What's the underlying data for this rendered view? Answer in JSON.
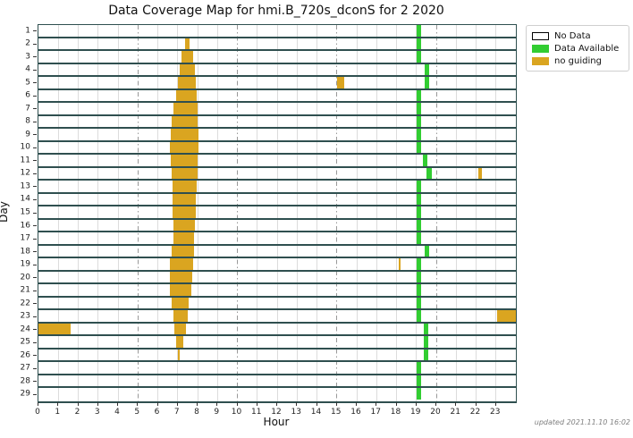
{
  "chart_data": {
    "type": "heatmap",
    "title": "Data Coverage Map for hmi.B_720s_dconS for 2 2020",
    "xlabel": "Hour",
    "ylabel": "Day",
    "xlim": [
      0,
      24
    ],
    "days": 29,
    "x_tick_labels": [
      "0",
      "1",
      "2",
      "3",
      "4",
      "5",
      "6",
      "7",
      "8",
      "9",
      "10",
      "11",
      "12",
      "13",
      "14",
      "15",
      "16",
      "17",
      "18",
      "19",
      "20",
      "21",
      "22",
      "23"
    ],
    "y_tick_labels": [
      "1",
      "2",
      "3",
      "4",
      "5",
      "6",
      "7",
      "8",
      "9",
      "10",
      "11",
      "12",
      "13",
      "14",
      "15",
      "16",
      "17",
      "18",
      "19",
      "20",
      "21",
      "22",
      "23",
      "24",
      "25",
      "26",
      "27",
      "28",
      "29"
    ],
    "grid_accent_hours": [
      5,
      10,
      15,
      20
    ],
    "grid_on": true,
    "legend_position": "upper right, outside plot",
    "legend": [
      {
        "label": "No Data",
        "color": "#ffffff",
        "edge": "#000000"
      },
      {
        "label": "Data Available",
        "color": "#32CD32",
        "edge": "#32CD32"
      },
      {
        "label": "no guiding",
        "color": "#DAA520",
        "edge": "#DAA520"
      }
    ],
    "colors": {
      "data_available": "#32CD32",
      "no_guiding": "#DAA520",
      "row_separator": "#2F4F4F",
      "grid": "#dcdcdc",
      "grid_accent": "#999999",
      "background": "#ffffff"
    },
    "segments": {
      "data_available": [
        [
          1,
          19.0,
          19.22
        ],
        [
          2,
          19.0,
          19.22
        ],
        [
          3,
          19.0,
          19.22
        ],
        [
          4,
          19.4,
          19.62
        ],
        [
          5,
          19.4,
          19.62
        ],
        [
          6,
          19.0,
          19.22
        ],
        [
          7,
          19.0,
          19.22
        ],
        [
          8,
          19.0,
          19.22
        ],
        [
          9,
          19.0,
          19.22
        ],
        [
          10,
          19.0,
          19.22
        ],
        [
          11,
          19.33,
          19.55
        ],
        [
          12,
          19.5,
          19.78
        ],
        [
          13,
          19.0,
          19.22
        ],
        [
          14,
          19.0,
          19.22
        ],
        [
          15,
          19.0,
          19.22
        ],
        [
          16,
          19.0,
          19.22
        ],
        [
          17,
          19.0,
          19.22
        ],
        [
          18,
          19.4,
          19.62
        ],
        [
          19,
          19.0,
          19.22
        ],
        [
          20,
          19.0,
          19.22
        ],
        [
          21,
          19.0,
          19.22
        ],
        [
          22,
          19.0,
          19.22
        ],
        [
          23,
          19.0,
          19.22
        ],
        [
          24,
          19.38,
          19.6
        ],
        [
          25,
          19.38,
          19.6
        ],
        [
          26,
          19.38,
          19.6
        ],
        [
          27,
          19.0,
          19.22
        ],
        [
          28,
          19.0,
          19.22
        ],
        [
          29,
          19.0,
          19.22
        ]
      ],
      "no_guiding": [
        [
          2,
          7.35,
          7.6
        ],
        [
          3,
          7.2,
          7.78
        ],
        [
          4,
          7.1,
          7.85
        ],
        [
          5,
          7.0,
          7.9
        ],
        [
          6,
          6.9,
          7.95
        ],
        [
          7,
          6.8,
          8.0
        ],
        [
          8,
          6.7,
          8.0
        ],
        [
          9,
          6.65,
          8.05
        ],
        [
          10,
          6.6,
          8.05
        ],
        [
          11,
          6.65,
          8.0
        ],
        [
          12,
          6.7,
          8.0
        ],
        [
          13,
          6.75,
          7.95
        ],
        [
          14,
          6.75,
          7.9
        ],
        [
          15,
          6.75,
          7.9
        ],
        [
          16,
          6.8,
          7.85
        ],
        [
          17,
          6.8,
          7.8
        ],
        [
          18,
          6.7,
          7.8
        ],
        [
          19,
          6.6,
          7.78
        ],
        [
          20,
          6.6,
          7.75
        ],
        [
          21,
          6.6,
          7.7
        ],
        [
          22,
          6.7,
          7.55
        ],
        [
          23,
          6.8,
          7.5
        ],
        [
          24,
          6.85,
          7.4
        ],
        [
          25,
          6.9,
          7.3
        ],
        [
          26,
          7.0,
          7.12
        ],
        [
          5,
          15.0,
          15.35
        ],
        [
          12,
          22.1,
          22.3
        ],
        [
          19,
          18.12,
          18.2
        ],
        [
          23,
          23.05,
          24.0
        ],
        [
          24,
          0.0,
          1.6
        ]
      ]
    },
    "footer_note": "updated 2021.11.10 16:02"
  }
}
